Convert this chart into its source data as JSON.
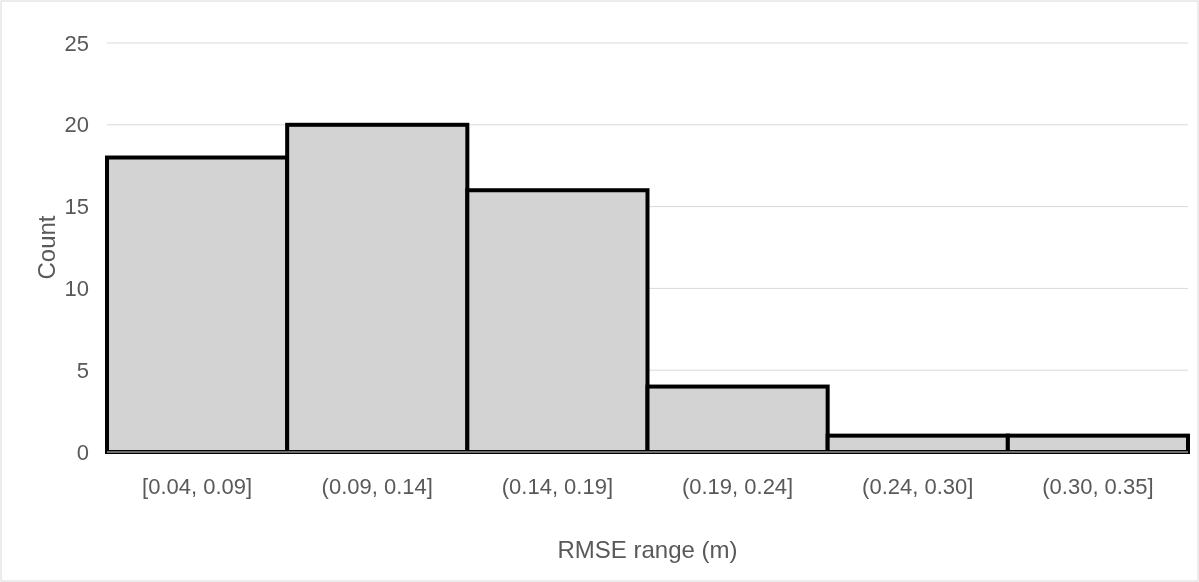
{
  "chart_data": {
    "type": "bar",
    "xlabel": "RMSE range (m)",
    "ylabel": "Count",
    "categories": [
      "[0.04, 0.09]",
      "(0.09, 0.14]",
      "(0.14, 0.19]",
      "(0.19, 0.24]",
      "(0.24, 0.30]",
      "(0.30, 0.35]"
    ],
    "values": [
      18,
      20,
      16,
      4,
      1,
      1
    ],
    "color": "#d3d3d3",
    "ylim": [
      0,
      25
    ],
    "yticks": [
      0,
      5,
      10,
      15,
      20,
      25
    ],
    "grid": "y"
  }
}
